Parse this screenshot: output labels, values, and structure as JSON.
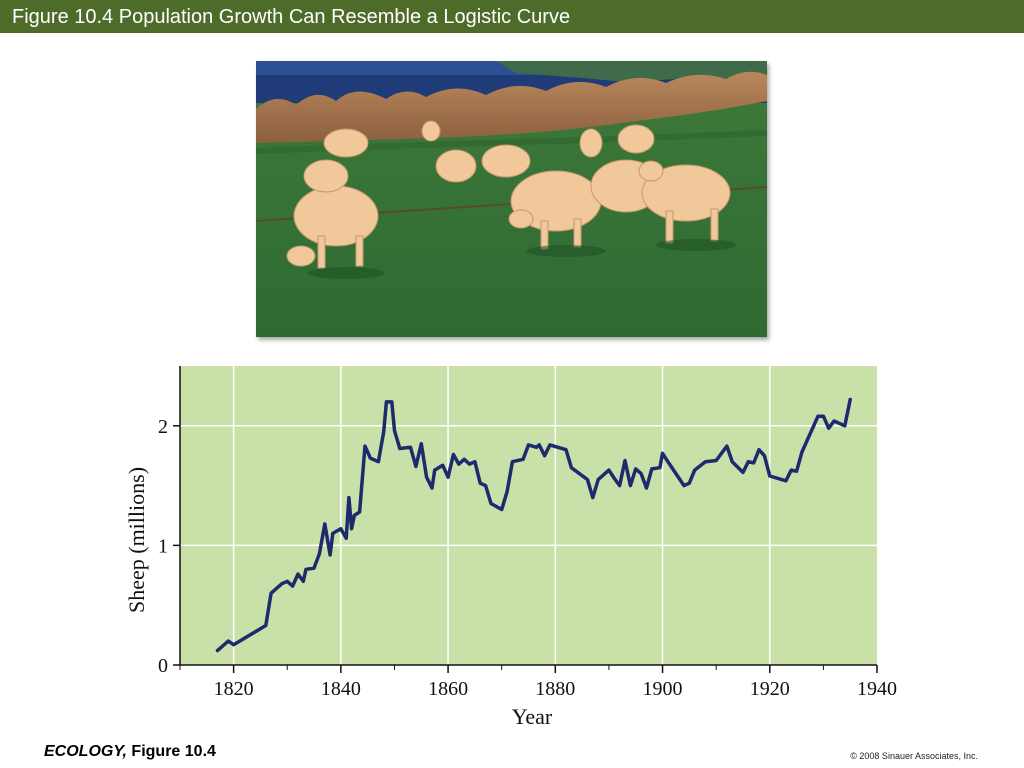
{
  "header": {
    "title": "Figure 10.4  Population Growth Can Resemble a Logistic Curve",
    "bar_color": "#4e6b2a"
  },
  "photo": {
    "subject": "sheep-grazing-photo"
  },
  "chart_data": {
    "type": "line",
    "title": "",
    "xlabel": "Year",
    "ylabel": "Sheep (millions)",
    "xlim": [
      1810,
      1940
    ],
    "ylim": [
      0,
      2.5
    ],
    "xticks": [
      1820,
      1840,
      1860,
      1880,
      1900,
      1920,
      1940
    ],
    "yticks": [
      0,
      1,
      2
    ],
    "grid": true,
    "background": "#c9e0a8",
    "line_color": "#1e2a6e",
    "series": [
      {
        "name": "",
        "points": [
          [
            1817,
            0.12
          ],
          [
            1819,
            0.2
          ],
          [
            1820,
            0.17
          ],
          [
            1826,
            0.33
          ],
          [
            1827,
            0.6
          ],
          [
            1829,
            0.68
          ],
          [
            1830,
            0.7
          ],
          [
            1831,
            0.66
          ],
          [
            1832,
            0.76
          ],
          [
            1833,
            0.7
          ],
          [
            1833.5,
            0.8
          ],
          [
            1835,
            0.81
          ],
          [
            1836,
            0.93
          ],
          [
            1837,
            1.18
          ],
          [
            1838,
            0.92
          ],
          [
            1838.5,
            1.1
          ],
          [
            1840,
            1.14
          ],
          [
            1841,
            1.06
          ],
          [
            1841.5,
            1.4
          ],
          [
            1842,
            1.14
          ],
          [
            1842.5,
            1.25
          ],
          [
            1843.5,
            1.28
          ],
          [
            1844.5,
            1.83
          ],
          [
            1845.5,
            1.73
          ],
          [
            1847,
            1.7
          ],
          [
            1848,
            1.95
          ],
          [
            1848.5,
            2.2
          ],
          [
            1849.5,
            2.2
          ],
          [
            1850,
            1.96
          ],
          [
            1851,
            1.81
          ],
          [
            1853,
            1.82
          ],
          [
            1854,
            1.66
          ],
          [
            1855,
            1.85
          ],
          [
            1856,
            1.57
          ],
          [
            1857,
            1.48
          ],
          [
            1857.5,
            1.63
          ],
          [
            1859,
            1.67
          ],
          [
            1860,
            1.57
          ],
          [
            1861,
            1.76
          ],
          [
            1862,
            1.68
          ],
          [
            1863,
            1.72
          ],
          [
            1864,
            1.68
          ],
          [
            1865,
            1.7
          ],
          [
            1866,
            1.52
          ],
          [
            1867,
            1.5
          ],
          [
            1868,
            1.35
          ],
          [
            1870,
            1.3
          ],
          [
            1871,
            1.45
          ],
          [
            1872,
            1.7
          ],
          [
            1874,
            1.72
          ],
          [
            1875,
            1.84
          ],
          [
            1876.5,
            1.82
          ],
          [
            1877,
            1.84
          ],
          [
            1878,
            1.75
          ],
          [
            1879,
            1.84
          ],
          [
            1882,
            1.8
          ],
          [
            1883,
            1.65
          ],
          [
            1886,
            1.55
          ],
          [
            1887,
            1.4
          ],
          [
            1888,
            1.55
          ],
          [
            1890,
            1.63
          ],
          [
            1891,
            1.56
          ],
          [
            1892,
            1.5
          ],
          [
            1893,
            1.71
          ],
          [
            1894,
            1.5
          ],
          [
            1895,
            1.64
          ],
          [
            1896,
            1.6
          ],
          [
            1897,
            1.48
          ],
          [
            1898,
            1.64
          ],
          [
            1899.5,
            1.65
          ],
          [
            1900,
            1.77
          ],
          [
            1901,
            1.7
          ],
          [
            1904,
            1.5
          ],
          [
            1905,
            1.52
          ],
          [
            1906,
            1.63
          ],
          [
            1908,
            1.7
          ],
          [
            1910,
            1.71
          ],
          [
            1912,
            1.83
          ],
          [
            1913,
            1.7
          ],
          [
            1915,
            1.61
          ],
          [
            1916,
            1.7
          ],
          [
            1917,
            1.69
          ],
          [
            1918,
            1.8
          ],
          [
            1919,
            1.75
          ],
          [
            1920,
            1.58
          ],
          [
            1923,
            1.54
          ],
          [
            1924,
            1.63
          ],
          [
            1925,
            1.62
          ],
          [
            1926,
            1.78
          ],
          [
            1929,
            2.08
          ],
          [
            1930,
            2.08
          ],
          [
            1931,
            1.98
          ],
          [
            1932,
            2.04
          ],
          [
            1934,
            2.0
          ],
          [
            1935,
            2.22
          ]
        ]
      }
    ]
  },
  "footer": {
    "book": "ECOLOGY,",
    "figure": " Figure 10.4",
    "copyright": "© 2008 Sinauer Associates, Inc."
  }
}
